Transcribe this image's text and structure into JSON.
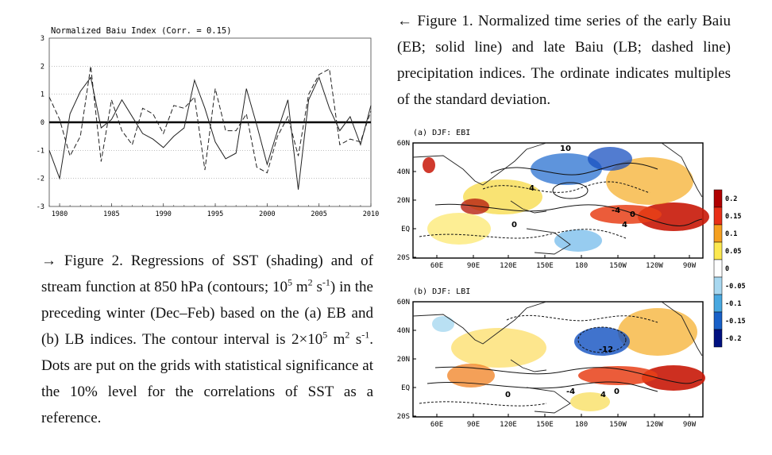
{
  "chart_data": {
    "type": "line",
    "title": "Normalized Baiu Index (Corr. = 0.15)",
    "xlabel": "",
    "ylabel": "",
    "xlim": [
      1979,
      2010
    ],
    "ylim": [
      -3,
      3
    ],
    "x_ticks": [
      1980,
      1985,
      1990,
      1995,
      2000,
      2005,
      2010
    ],
    "y_ticks": [
      -3,
      -2,
      -1,
      0,
      1,
      2,
      3
    ],
    "grid": true,
    "x": [
      1979,
      1980,
      1981,
      1982,
      1983,
      1984,
      1985,
      1986,
      1987,
      1988,
      1989,
      1990,
      1991,
      1992,
      1993,
      1994,
      1995,
      1996,
      1997,
      1998,
      1999,
      2000,
      2001,
      2002,
      2003,
      2004,
      2005,
      2006,
      2007,
      2008,
      2009,
      2010
    ],
    "series": [
      {
        "name": "EB",
        "style": "solid",
        "values": [
          -1.0,
          -2.0,
          0.3,
          1.1,
          1.6,
          -0.2,
          0.1,
          0.8,
          0.2,
          -0.4,
          -0.6,
          -0.9,
          -0.5,
          -0.2,
          1.5,
          0.5,
          -0.7,
          -1.3,
          -1.1,
          1.2,
          -0.1,
          -1.5,
          -0.3,
          0.8,
          -2.4,
          0.8,
          1.6,
          0.5,
          -0.3,
          0.2,
          -0.8,
          0.6
        ]
      },
      {
        "name": "LB",
        "style": "dashed",
        "values": [
          0.9,
          0.1,
          -1.2,
          -0.5,
          2.0,
          -1.4,
          0.8,
          -0.3,
          -0.8,
          0.5,
          0.3,
          -0.4,
          0.6,
          0.5,
          0.9,
          -1.7,
          1.2,
          -0.3,
          -0.3,
          0.3,
          -1.6,
          -1.8,
          -0.5,
          0.2,
          -1.2,
          1.0,
          1.7,
          1.9,
          -0.8,
          -0.6,
          -0.7,
          0.4
        ]
      }
    ]
  },
  "captions": {
    "fig1": "← Figure 1. Normalized time series of the early Baiu (EB; solid line) and late Baiu (LB; dashed line) precipitation indices. The ordinate indicates multiples of the standard deviation.",
    "fig2_part1": "→ Figure 2. Regressions of SST (shading) and of stream function at 850 hPa (contours; 10",
    "fig2_sup1": "5",
    "fig2_part2": " m",
    "fig2_sup2": "2",
    "fig2_part3": " s",
    "fig2_sup3": "-1",
    "fig2_part4": ") in the preceding winter (Dec–Feb) based on the (a) EB and (b) LB indices. The contour interval is 2×10",
    "fig2_sup4": "5",
    "fig2_part5": " m",
    "fig2_sup5": "2",
    "fig2_part6": " s",
    "fig2_sup6": "-1",
    "fig2_part7": ". Dots are put on the grids with statistical significance at the 10% level for the correlations of SST as a reference."
  },
  "maps": {
    "panel_a_title": "(a) DJF: EBI",
    "panel_b_title": "(b) DJF: LBI",
    "lat_labels": [
      "60N",
      "40N",
      "20N",
      "EQ",
      "20S"
    ],
    "lon_labels": [
      "60E",
      "90E",
      "120E",
      "150E",
      "180",
      "150W",
      "120W",
      "90W"
    ],
    "contour_labels_a": [
      "10",
      "4",
      "-4",
      "4",
      "0",
      "0"
    ],
    "contour_labels_b": [
      "-12",
      "-4",
      "4",
      "0",
      "0"
    ],
    "colorbar_labels": [
      "0.2",
      "0.15",
      "0.1",
      "0.05",
      "0",
      "-0.05",
      "-0.1",
      "-0.15",
      "-0.2"
    ],
    "colorbar_colors": [
      "#b00000",
      "#e83018",
      "#f5a020",
      "#fce850",
      "#ffffff",
      "#a8d8f0",
      "#48a8e0",
      "#1860c8",
      "#001080"
    ]
  }
}
